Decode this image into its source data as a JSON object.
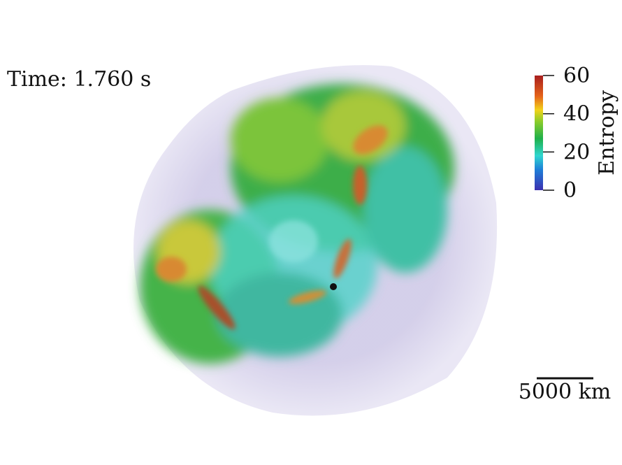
{
  "time_label": "Time: 1.760 s",
  "colorbar": {
    "label": "Entropy",
    "range": [
      0,
      60
    ],
    "ticks": [
      0,
      20,
      40,
      60
    ]
  },
  "scale_bar": {
    "label": "5000 km"
  }
}
